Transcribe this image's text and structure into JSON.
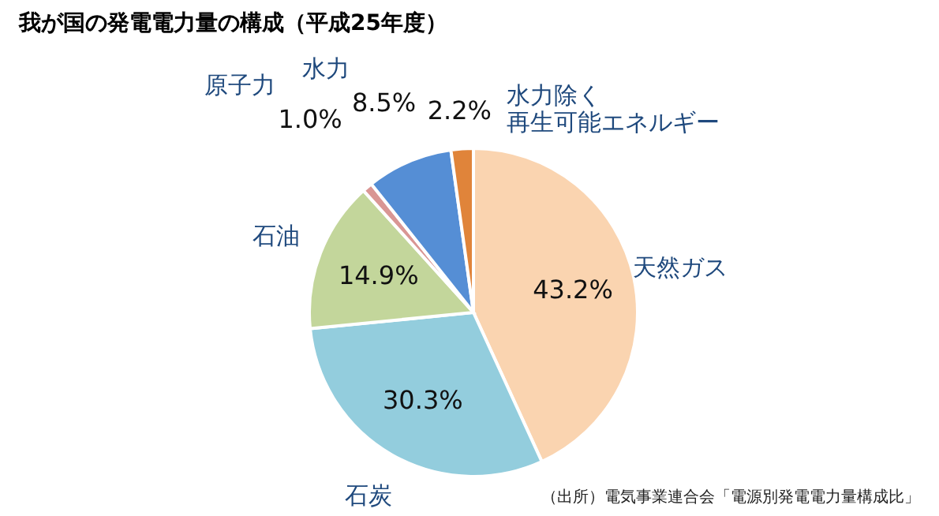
{
  "chart_data": {
    "type": "pie",
    "title": "我が国の発電電力量の構成（平成25年度）",
    "categories": [
      "天然ガス",
      "石炭",
      "石油",
      "原子力",
      "水力",
      "水力除く再生可能エネルギー"
    ],
    "values": [
      43.2,
      30.3,
      14.9,
      1.0,
      8.5,
      2.2
    ],
    "colors": [
      "#fad4b0",
      "#93cddd",
      "#c3d69b",
      "#d99694",
      "#558ed5",
      "#e0843a"
    ],
    "value_labels": [
      "43.2%",
      "30.3%",
      "14.9%",
      "1.0%",
      "8.5%",
      "2.2%"
    ],
    "annotations": [
      "（出所）電気事業連合会「電源別発電電力量構成比」"
    ]
  }
}
